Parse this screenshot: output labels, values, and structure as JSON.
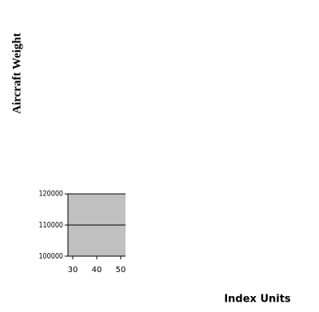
{
  "chart_data": {
    "type": "line",
    "y_label": "Aircraft Weight",
    "x_label": "Index Units",
    "ylim": [
      100000,
      120000
    ],
    "yticks": [
      100000,
      110000,
      120000
    ],
    "xlim": [
      28,
      60
    ],
    "xticks": [
      30,
      40,
      50
    ],
    "grid": true
  }
}
